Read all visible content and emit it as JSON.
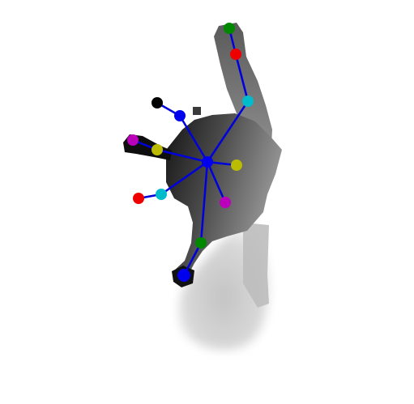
{
  "colors": {
    "background": "#ffffff",
    "skeleton_line": "#0000dd",
    "joint_blue": "#0000ee",
    "joint_red": "#ee0000",
    "joint_green": "#008800",
    "joint_cyan": "#00bbcc",
    "joint_magenta": "#bb00bb",
    "joint_yellow": "#bbbb00",
    "joint_black": "#000000",
    "depth_dark": "#1a1a1a",
    "depth_mid": "#6a6a6a",
    "depth_light": "#c8c8c8"
  },
  "joints": [
    {
      "name": "palm-center",
      "color": "#0000ee"
    },
    {
      "name": "index-tip",
      "color": "#008800"
    },
    {
      "name": "index-dip",
      "color": "#ee0000"
    },
    {
      "name": "index-mcp",
      "color": "#00bbcc"
    },
    {
      "name": "middle-tip",
      "color": "#000000"
    },
    {
      "name": "middle-mcp",
      "color": "#0000ee"
    },
    {
      "name": "ring-tip",
      "color": "#bb00bb"
    },
    {
      "name": "ring-mcp",
      "color": "#bbbb00"
    },
    {
      "name": "pinky-tip",
      "color": "#ee0000"
    },
    {
      "name": "pinky-mcp",
      "color": "#00bbcc"
    },
    {
      "name": "thumb-mcp",
      "color": "#bbbb00"
    },
    {
      "name": "thumb-tip",
      "color": "#bb00bb"
    },
    {
      "name": "wrist-upper",
      "color": "#008800"
    },
    {
      "name": "wrist-lower",
      "color": "#0000ee"
    }
  ]
}
